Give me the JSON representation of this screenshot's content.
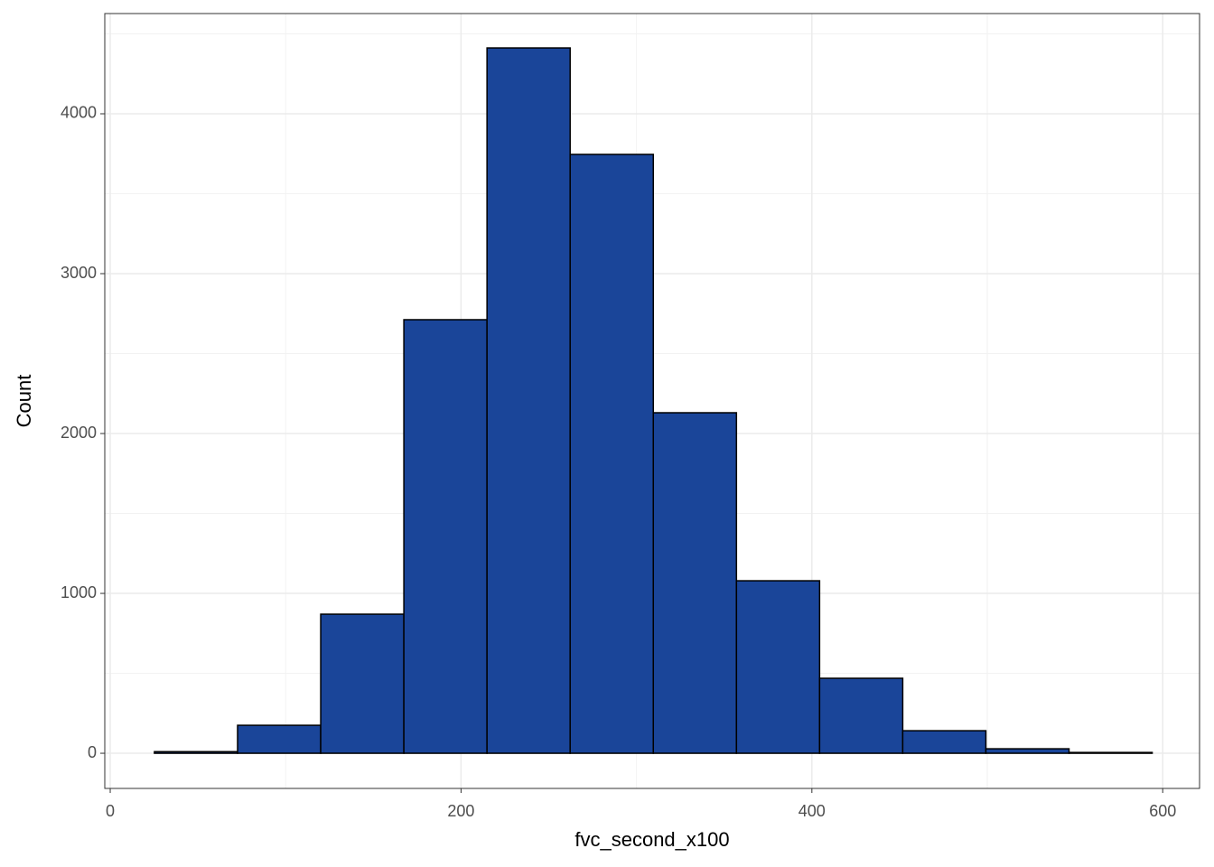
{
  "chart_data": {
    "type": "histogram",
    "x_label": "fvc_second_x100",
    "y_label": "Count",
    "bins": [
      25.2,
      72.6,
      120,
      167.4,
      214.8,
      262.2,
      309.6,
      357,
      404.4,
      451.8,
      499.2,
      546.6,
      594
    ],
    "values": [
      10,
      175,
      870,
      2712,
      4412,
      3746,
      2130,
      1079,
      469,
      141,
      28,
      5
    ],
    "color": "#1a4599",
    "edge_color": "#000000",
    "xlim": [
      -3.1,
      621
    ],
    "xticks": [
      0,
      200,
      400,
      600
    ],
    "x_minor_grid": [
      100,
      300,
      500
    ],
    "ylim": [
      -220,
      4627
    ],
    "yticks": [
      0,
      1000,
      2000,
      3000,
      4000
    ],
    "y_minor_grid": [
      500,
      1500,
      2500,
      3500,
      4500
    ],
    "grid": true
  }
}
